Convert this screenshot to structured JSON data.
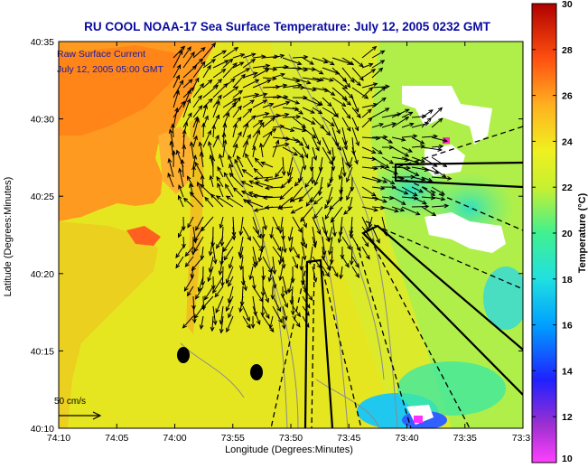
{
  "title": "RU COOL  NOAA-17  Sea Surface Temperature:  July 12, 2005 0232 GMT",
  "annotation": {
    "line1": "Raw Surface Current",
    "line2": "July 12, 2005 05:00 GMT"
  },
  "scale": {
    "label": "50 cm/s"
  },
  "axes": {
    "xlabel": "Longitude (Degrees:Minutes)",
    "ylabel": "Latitude (Degrees:Minutes)",
    "xticks": [
      "74:10",
      "74:05",
      "74:00",
      "73:55",
      "73:50",
      "73:45",
      "73:40",
      "73:35",
      "73:3"
    ],
    "yticks": [
      "40:35",
      "40:30",
      "40:25",
      "40:20",
      "40:15",
      "40:10"
    ]
  },
  "colorbar": {
    "label": "Temperature (°C)",
    "ticks": [
      "30",
      "28",
      "26",
      "24",
      "22",
      "20",
      "18",
      "16",
      "14",
      "12",
      "10"
    ],
    "min": 10,
    "max": 30
  },
  "colors": {
    "title": "#0a0aa0",
    "annotation": "#1a1aa0",
    "land": "#ff9020",
    "ocean": "#e8e820",
    "cool_water": "#40e0a0",
    "cold_water": "#30c0ff"
  }
}
